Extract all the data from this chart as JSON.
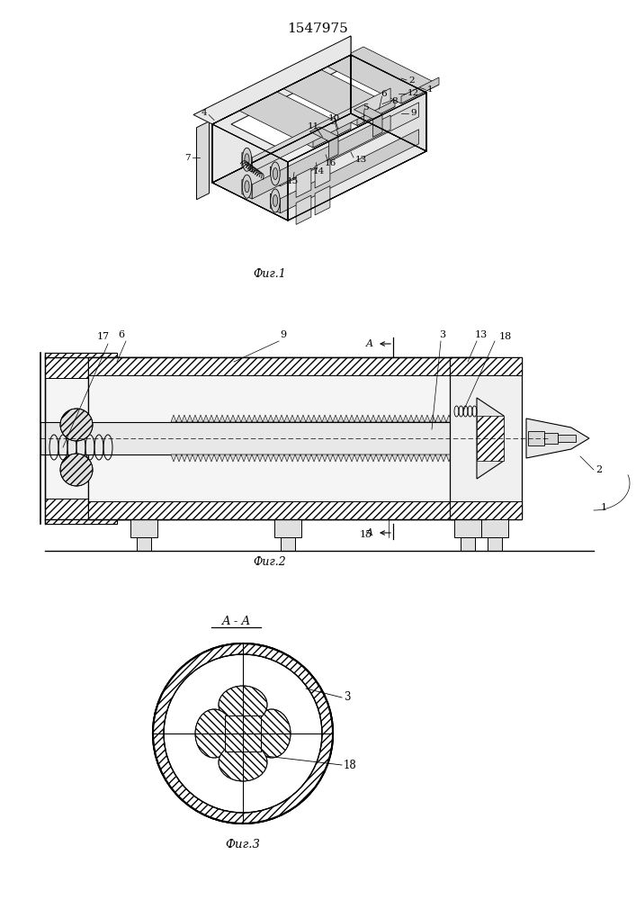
{
  "title": "1547975",
  "fig1_caption": "Фиг.1",
  "fig2_caption": "Фиг.2",
  "fig3_caption": "Фиг.3",
  "background_color": "#ffffff"
}
